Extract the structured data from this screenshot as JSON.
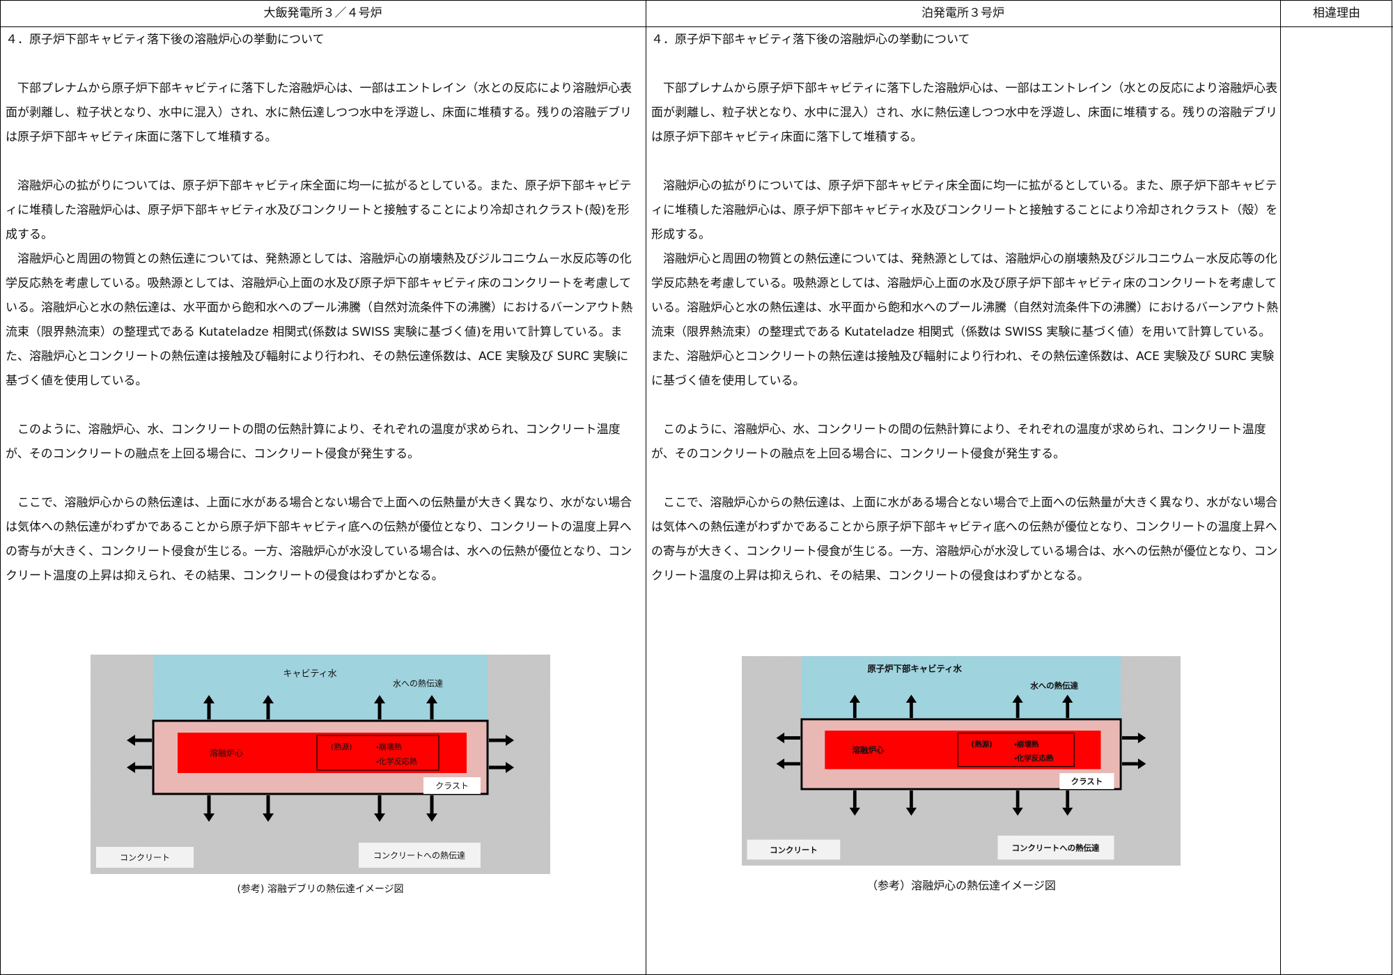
{
  "header": {
    "left": "大飯発電所３／４号炉",
    "right": "泊発電所３号炉",
    "reason": "相違理由"
  },
  "left": {
    "paragraphs": [
      "４．原子炉下部キャビティ落下後の溶融炉心の挙動について",
      "　下部プレナムから原子炉下部キャビティに落下した溶融炉心は、一部はエントレイン（水との反応により溶融炉心表面が剥離し、粒子状となり、水中に混入）され、水に熱伝達しつつ水中を浮遊し、床面に堆積する。残りの溶融デブリは原子炉下部キャビティ床面に落下して堆積する。",
      "　溶融炉心の拡がりについては、原子炉下部キャビティ床全面に均一に拡がるとしている。また、原子炉下部キャビティに堆積した溶融炉心は、原子炉下部キャビティ水及びコンクリートと接触することにより冷却されクラスト(殻)を形成する。",
      "　溶融炉心と周囲の物質との熱伝達については、発熱源としては、溶融炉心の崩壊熱及びジルコニウム－水反応等の化学反応熱を考慮している。吸熱源としては、溶融炉心上面の水及び原子炉下部キャビティ床のコンクリートを考慮している。溶融炉心と水の熱伝達は、水平面から飽和水へのプール沸騰（自然対流条件下の沸騰）におけるバーンアウト熱流束（限界熱流束）の整理式である Kutateladze 相関式(係数は SWISS 実験に基づく値)を用いて計算している。また、溶融炉心とコンクリートの熱伝達は接触及び輻射により行われ、その熱伝達係数は、ACE 実験及び SURC 実験に基づく値を使用している。",
      "　このように、溶融炉心、水、コンクリートの間の伝熱計算により、それぞれの温度が求められ、コンクリート温度が、そのコンクリートの融点を上回る場合に、コンクリート侵食が発生する。",
      "　ここで、溶融炉心からの熱伝達は、上面に水がある場合とない場合で上面への伝熱量が大きく異なり、水がない場合は気体への熱伝達がわずかであることから原子炉下部キャビティ底への伝熱が優位となり、コンクリートの温度上昇への寄与が大きく、コンクリート侵食が生じる。一方、溶融炉心が水没している場合は、水への伝熱が優位となり、コンクリート温度の上昇は抑えられ、その結果、コンクリートの侵食はわずかとなる。"
    ],
    "figure": {
      "water": "キャビティ水",
      "water_heat": "水への熱伝達",
      "core": "溶融炉心",
      "heat_source": "(熱源)",
      "decay_heat": "・崩壊熱",
      "chemical_heat": "・化学反応熱",
      "crust": "クラスト",
      "concrete": "コンクリート",
      "concrete_heat": "コンクリートへの熱伝達",
      "caption": "(参考) 溶融デブリの熱伝達イメージ図"
    }
  },
  "right": {
    "paragraphs": [
      "４．原子炉下部キャビティ落下後の溶融炉心の挙動について",
      "　下部プレナムから原子炉下部キャビティに落下した溶融炉心は、一部はエントレイン（水との反応により溶融炉心表面が剥離し、粒子状となり、水中に混入）され、水に熱伝達しつつ水中を浮遊し、床面に堆積する。残りの溶融デブリは原子炉下部キャビティ床面に落下して堆積する。",
      "　溶融炉心の拡がりについては、原子炉下部キャビティ床全面に均一に拡がるとしている。また、原子炉下部キャビティに堆積した溶融炉心は、原子炉下部キャビティ水及びコンクリートと接触することにより冷却されクラスト（殻）を形成する。",
      "　溶融炉心と周囲の物質との熱伝達については、発熱源としては、溶融炉心の崩壊熱及びジルコニウム－水反応等の化学反応熱を考慮している。吸熱源としては、溶融炉心上面の水及び原子炉下部キャビティ床のコンクリートを考慮している。溶融炉心と水の熱伝達は、水平面から飽和水へのプール沸騰（自然対流条件下の沸騰）におけるバーンアウト熱流束（限界熱流束）の整理式である Kutateladze 相関式（係数は SWISS 実験に基づく値）を用いて計算している。また、溶融炉心とコンクリートの熱伝達は接触及び輻射により行われ、その熱伝達係数は、ACE 実験及び SURC 実験に基づく値を使用している。",
      "　このように、溶融炉心、水、コンクリートの間の伝熱計算により、それぞれの温度が求められ、コンクリート温度が、そのコンクリートの融点を上回る場合に、コンクリート侵食が発生する。",
      "　ここで、溶融炉心からの熱伝達は、上面に水がある場合とない場合で上面への伝熱量が大きく異なり、水がない場合は気体への熱伝達がわずかであることから原子炉下部キャビティ底への伝熱が優位となり、コンクリートの温度上昇への寄与が大きく、コンクリート侵食が生じる。一方、溶融炉心が水没している場合は、水への伝熱が優位となり、コンクリート温度の上昇は抑えられ、その結果、コンクリートの侵食はわずかとなる。"
    ],
    "figure": {
      "water": "原子炉下部キャビティ水",
      "water_heat": "水への熱伝達",
      "core": "溶融炉心",
      "heat_source": "(熱源)",
      "decay_heat": "・崩壊熱",
      "chemical_heat": "・化学反応熱",
      "crust": "クラスト",
      "concrete": "コンクリート",
      "concrete_heat": "コンクリートへの熱伝達",
      "caption": "（参考）溶融炉心の熱伝達イメージ図"
    }
  }
}
